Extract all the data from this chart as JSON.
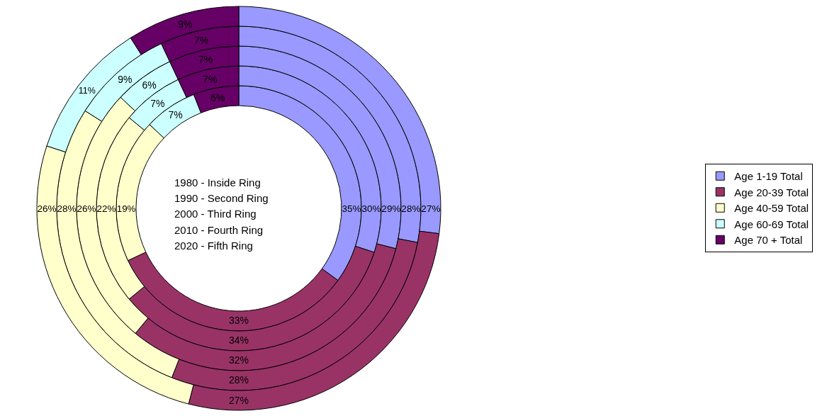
{
  "chart_data": {
    "type": "donut",
    "categories": [
      "Age 1-19 Total",
      "Age 20-39 Total",
      "Age 40-59 Total",
      "Age 60-69 Total",
      "Age 70 + Total"
    ],
    "colors": [
      "#9999ff",
      "#993366",
      "#ffffcc",
      "#ccffff",
      "#660066"
    ],
    "series": [
      {
        "values": [
          35,
          33,
          19,
          7,
          6
        ],
        "value_labels": [
          "35%",
          "33%",
          "19%",
          "7%",
          "6%"
        ]
      },
      {
        "values": [
          30,
          34,
          22,
          7,
          7
        ],
        "value_labels": [
          "30%",
          "34%",
          "22%",
          "7%",
          "7%"
        ]
      },
      {
        "values": [
          29,
          32,
          26,
          6,
          7
        ],
        "value_labels": [
          "29%",
          "32%",
          "26%",
          "6%",
          "7%"
        ]
      },
      {
        "values": [
          28,
          28,
          28,
          9,
          7
        ],
        "value_labels": [
          "28%",
          "28%",
          "28%",
          "9%",
          "7%"
        ]
      },
      {
        "values": [
          27,
          27,
          26,
          11,
          9
        ],
        "value_labels": [
          "27%",
          "27%",
          "26%",
          "11%",
          "9%"
        ]
      }
    ],
    "annotations": [
      "1980 - Inside Ring",
      "1990 - Second Ring",
      "2000 - Third Ring",
      "2010 - Fourth Ring",
      "2020 - Fifth Ring"
    ],
    "legend": "right"
  }
}
